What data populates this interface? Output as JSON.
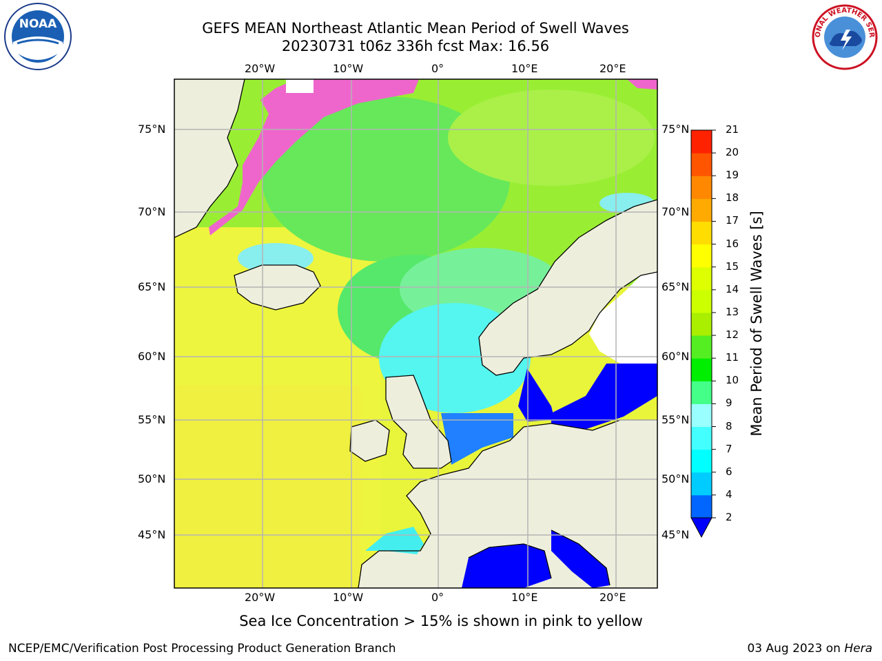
{
  "title": {
    "line1": "GEFS MEAN Northeast Atlantic Mean Period of Swell Waves",
    "line2": "20230731 t06z 336h fcst   Max: 16.56"
  },
  "map": {
    "lon_labels": [
      "20°W",
      "10°W",
      "0°",
      "10°E",
      "20°E"
    ],
    "lat_labels": [
      "75°N",
      "70°N",
      "65°N",
      "60°N",
      "55°N",
      "50°N",
      "45°N"
    ],
    "colors": {
      "land": "#eeeedd",
      "ice": "#ee66cc",
      "low_swell": "#0000ff"
    }
  },
  "colorbar": {
    "label": "Mean Period of Swell Waves [s]",
    "ticks": [
      "2",
      "4",
      "6",
      "7",
      "8",
      "9",
      "10",
      "11",
      "12",
      "13",
      "14",
      "15",
      "16",
      "17",
      "18",
      "19",
      "20",
      "21"
    ],
    "colors": [
      "#0066ff",
      "#00ccff",
      "#00ffff",
      "#44ffff",
      "#99ffff",
      "#44ff88",
      "#00ee00",
      "#55ee22",
      "#aaee00",
      "#ccff00",
      "#ddff00",
      "#ffff00",
      "#ffdd00",
      "#ffaa00",
      "#ff8800",
      "#ff5500",
      "#ff2200"
    ]
  },
  "caption": "Sea Ice Concentration > 15% is shown in pink to yellow",
  "footer": {
    "left": "NCEP/EMC/Verification Post Processing Product Generation Branch",
    "date": "03 Aug 2023 on ",
    "host": "Hera"
  },
  "logos": {
    "noaa": "NOAA",
    "nws": "NATIONAL WEATHER SERVICE"
  }
}
